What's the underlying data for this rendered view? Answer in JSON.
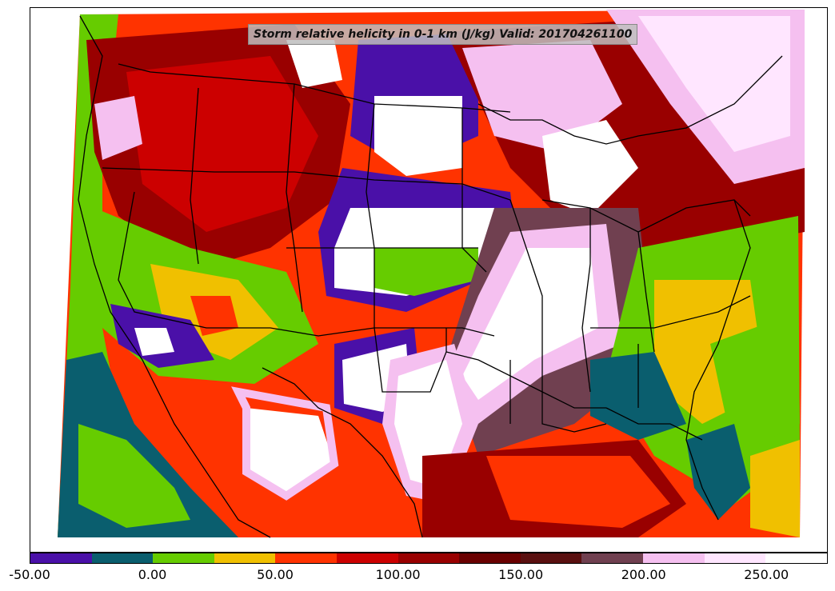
{
  "title": "Storm relative helicity in 0-1 km (J/kg) Valid: 201704261100",
  "colorbar": {
    "colors": [
      "#4a10a8",
      "#0a5e6e",
      "#66cc00",
      "#f0c000",
      "#ff3300",
      "#cc0000",
      "#990000",
      "#6a0000",
      "#5a1010",
      "#704050",
      "#f5c0f0",
      "#ffe6ff",
      "#ffffff"
    ],
    "tick_labels": [
      "-50.00",
      "0.00",
      "50.00",
      "100.00",
      "150.00",
      "200.00",
      "250.00"
    ]
  },
  "palette": {
    "ocean_purple": "#4a10a8",
    "teal": "#0a5e6e",
    "green": "#66cc00",
    "yellow": "#f0c000",
    "red": "#ff3300",
    "dark_red": "#990000",
    "maroon": "#5a1010",
    "pink": "#f5c0f0",
    "white": "#ffffff"
  }
}
